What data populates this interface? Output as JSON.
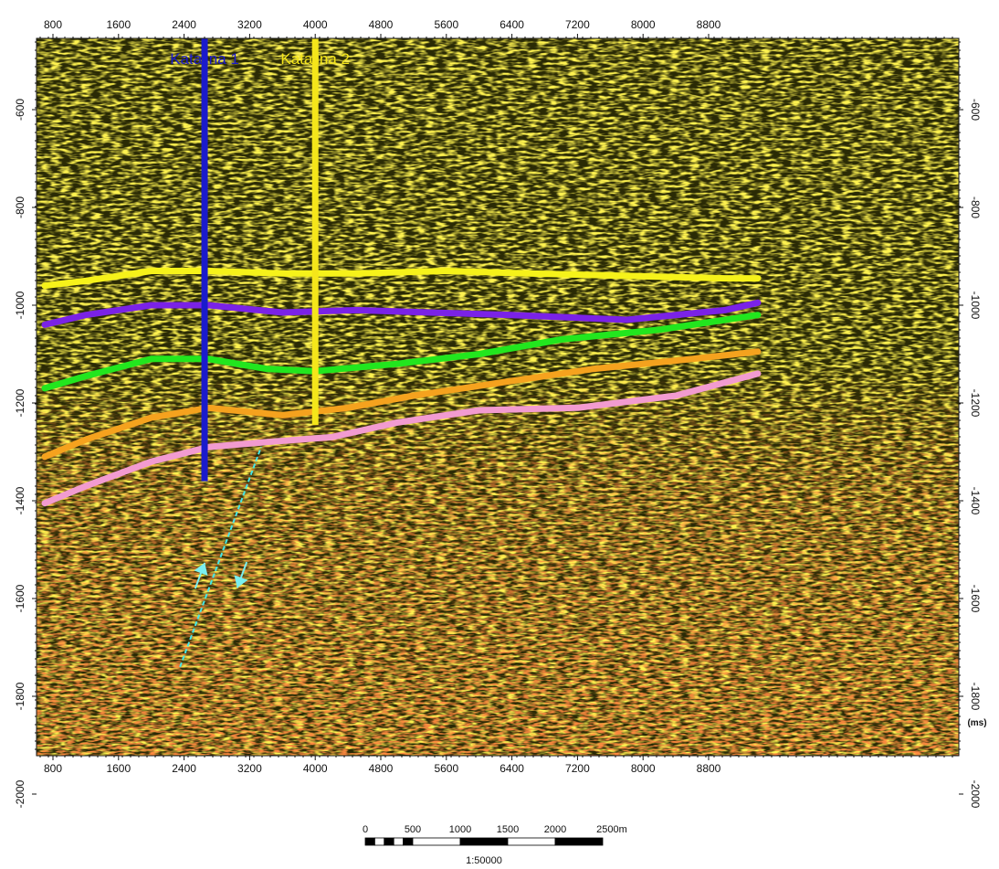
{
  "section": {
    "background_color": "#2a2a05",
    "x_ticks": [
      "800",
      "1600",
      "2400",
      "3200",
      "4000",
      "4800",
      "5600",
      "6400",
      "7200",
      "8000",
      "8800"
    ],
    "y_ticks": [
      "-600",
      "-800",
      "-1000",
      "-1200",
      "-1400",
      "-1600",
      "-1800",
      "-2000"
    ],
    "y_unit": "(ms)",
    "wells": [
      {
        "name": "Katalina 1",
        "color": "#1a1acc",
        "trace": 2650,
        "top_ms": -430,
        "bottom_ms": -1360
      },
      {
        "name": "Katalina 2",
        "color": "#f5e61a",
        "trace": 4000,
        "top_ms": -430,
        "bottom_ms": -1245
      }
    ],
    "horizons": [
      {
        "color": "#f6f21a",
        "trace": [
          700,
          1200,
          2000,
          2700,
          3600,
          4500,
          5600,
          6600,
          7800,
          9000,
          9400
        ],
        "twt_ms": [
          -960,
          -950,
          -930,
          -930,
          -935,
          -935,
          -930,
          -935,
          -940,
          -945,
          -945
        ]
      },
      {
        "color": "#7a22e6",
        "trace": [
          700,
          1200,
          2000,
          2700,
          3600,
          4500,
          5400,
          6400,
          7800,
          9000,
          9400
        ],
        "twt_ms": [
          -1040,
          -1020,
          -1000,
          -1000,
          -1015,
          -1010,
          -1015,
          -1020,
          -1030,
          -1010,
          -995
        ]
      },
      {
        "color": "#22e61e",
        "trace": [
          700,
          1200,
          2000,
          2700,
          3400,
          4000,
          5000,
          6000,
          7000,
          8200,
          9400
        ],
        "twt_ms": [
          -1170,
          -1145,
          -1110,
          -1110,
          -1130,
          -1135,
          -1120,
          -1100,
          -1070,
          -1050,
          -1020
        ]
      },
      {
        "color": "#f5a21e",
        "trace": [
          700,
          1200,
          2000,
          2700,
          3600,
          4400,
          5200,
          6200,
          7400,
          8600,
          9400
        ],
        "twt_ms": [
          -1310,
          -1275,
          -1230,
          -1210,
          -1225,
          -1210,
          -1185,
          -1160,
          -1130,
          -1110,
          -1095
        ]
      },
      {
        "color": "#f29bd0",
        "trace": [
          700,
          1200,
          2000,
          2700,
          3400,
          4200,
          5000,
          6000,
          7200,
          8400,
          9400
        ],
        "twt_ms": [
          -1405,
          -1370,
          -1320,
          -1290,
          -1280,
          -1270,
          -1240,
          -1215,
          -1210,
          -1185,
          -1140
        ]
      }
    ],
    "fault": {
      "color": "#46e6e6",
      "trace": [
        2350,
        3340
      ],
      "twt_ms": [
        -1740,
        -1290
      ],
      "arrows": [
        {
          "color": "#7aefef",
          "trace": 2590,
          "twt_ms": -1555,
          "direction": "up"
        },
        {
          "color": "#7aefef",
          "trace": 3110,
          "twt_ms": -1550,
          "direction": "down"
        }
      ]
    }
  },
  "scale_bar": {
    "labels": [
      "0",
      "500",
      "1000",
      "1500",
      "2000",
      "2500m"
    ],
    "ratio": "1:50000"
  }
}
